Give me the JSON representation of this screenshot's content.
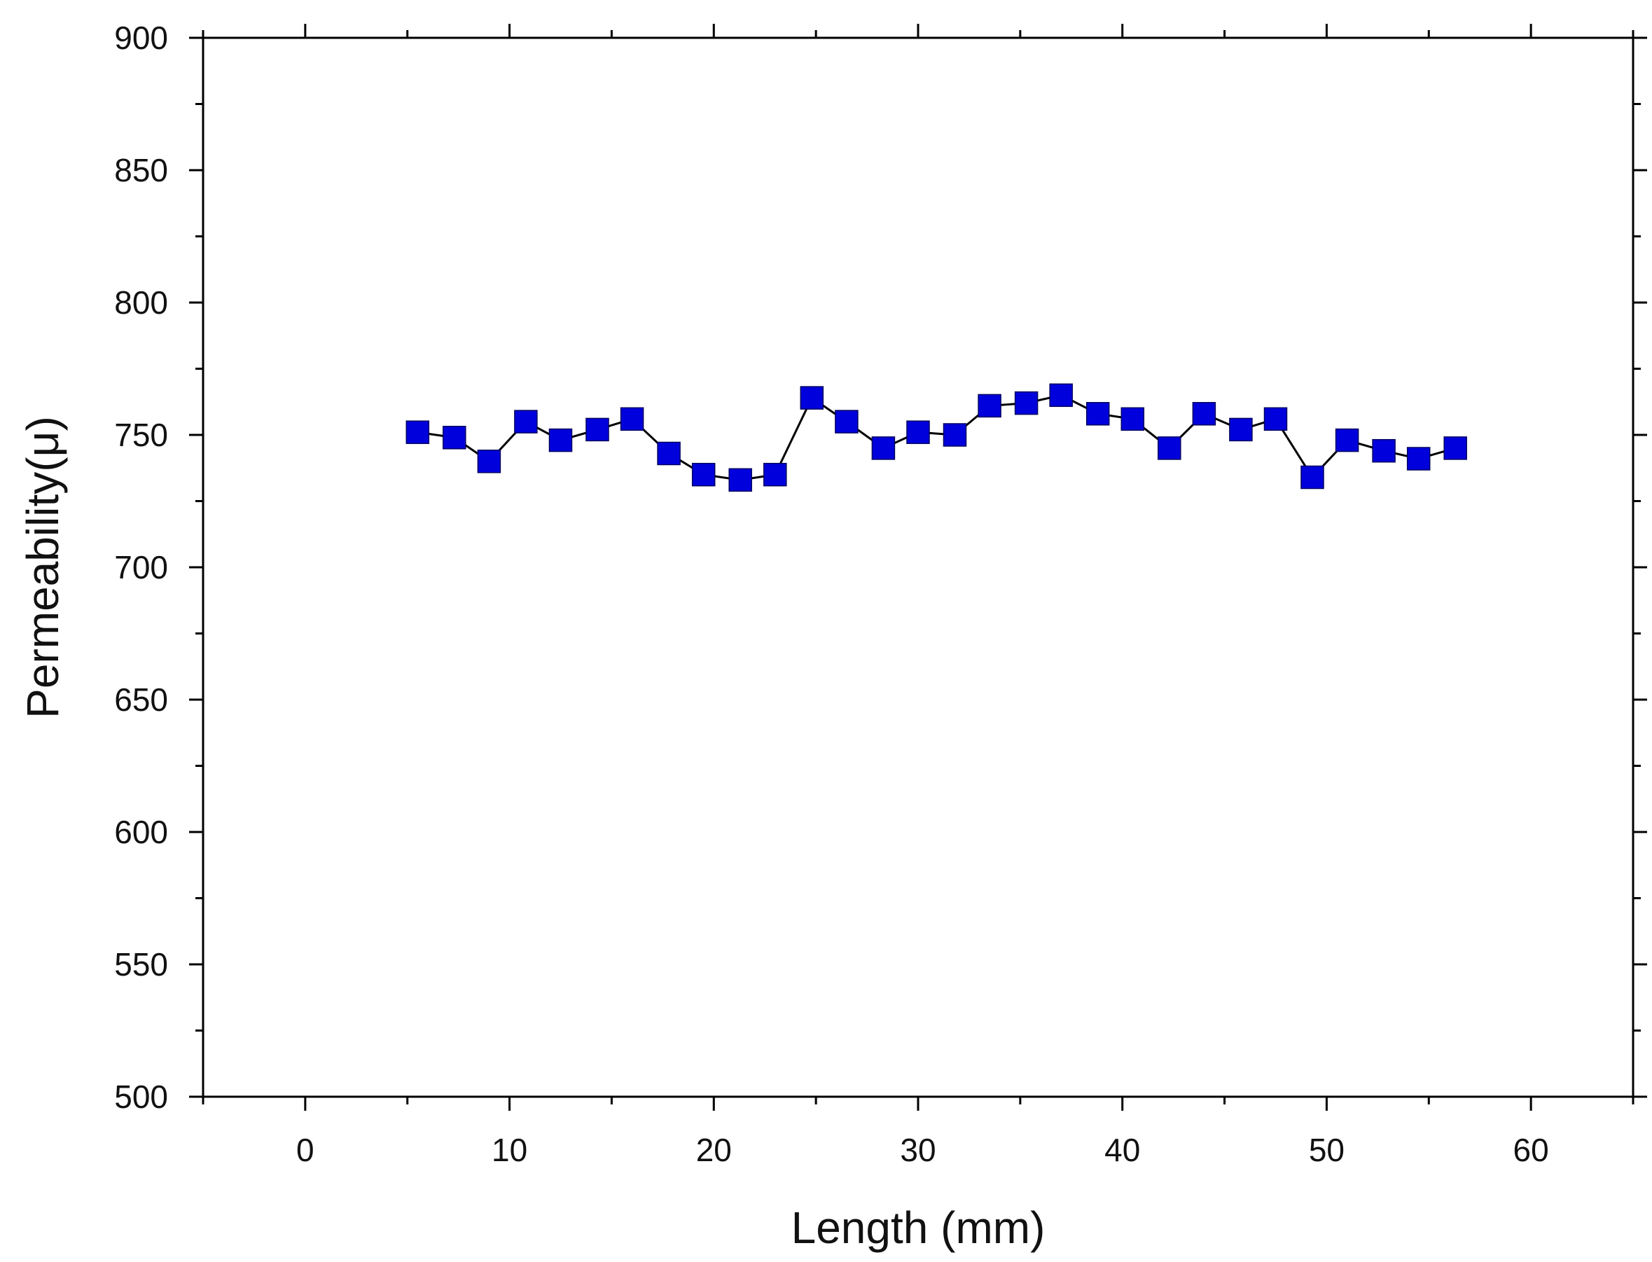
{
  "chart_data": {
    "type": "line",
    "title": "",
    "xlabel": "Length (mm)",
    "ylabel": "Permeability(μ)",
    "xlim": [
      -5,
      65
    ],
    "ylim": [
      500,
      900
    ],
    "xticks": [
      0,
      10,
      20,
      30,
      40,
      50,
      60
    ],
    "yticks": [
      500,
      550,
      600,
      650,
      700,
      750,
      800,
      850,
      900
    ],
    "grid": false,
    "legend": "none",
    "marker": "square",
    "series": [
      {
        "color": "#0000dd",
        "line_color": "#000000",
        "x": [
          5.5,
          7.3,
          9.0,
          10.8,
          12.5,
          14.3,
          16.0,
          17.8,
          19.5,
          21.3,
          23.0,
          24.8,
          26.5,
          28.3,
          30.0,
          31.8,
          33.5,
          35.3,
          37.0,
          38.8,
          40.5,
          42.3,
          44.0,
          45.8,
          47.5,
          49.3,
          51.0,
          52.8,
          54.5,
          56.3
        ],
        "y": [
          751,
          749,
          740,
          755,
          748,
          752,
          756,
          743,
          735,
          733,
          735,
          764,
          755,
          745,
          751,
          750,
          761,
          762,
          765,
          758,
          756,
          745,
          758,
          752,
          756,
          734,
          748,
          744,
          741,
          745
        ]
      }
    ]
  }
}
